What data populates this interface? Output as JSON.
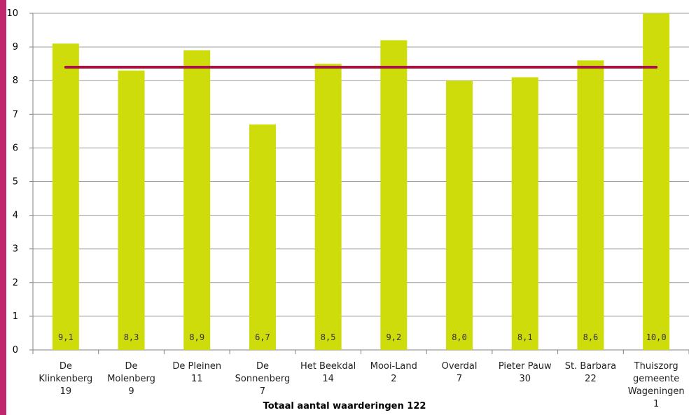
{
  "colors": {
    "bar": "#cddc0a",
    "average_line": "#a5133f",
    "accent_left_bar": "#c0266e",
    "grid": "#9a9a9a"
  },
  "footer": {
    "note": "Totaal aantal waarderingen 122"
  },
  "chart_data": {
    "type": "bar",
    "title": "",
    "xlabel": "",
    "ylabel": "",
    "ylim": [
      0,
      10
    ],
    "yticks": [
      "0",
      "1",
      "2",
      "3",
      "4",
      "5",
      "6",
      "7",
      "8",
      "9",
      "10"
    ],
    "grid": true,
    "categories": [
      [
        "De",
        "Klinkenberg",
        "19"
      ],
      [
        "De",
        "Molenberg",
        "9"
      ],
      [
        "De Pleinen",
        "11"
      ],
      [
        "De",
        "Sonnenberg",
        "7"
      ],
      [
        "Het Beekdal",
        "14"
      ],
      [
        "Mooi-Land",
        "2"
      ],
      [
        "Overdal",
        "7"
      ],
      [
        "Pieter Pauw",
        "30"
      ],
      [
        "St. Barbara",
        "22"
      ],
      [
        "Thuiszorg",
        "gemeente",
        "Wageningen",
        "1"
      ]
    ],
    "values": [
      9.1,
      8.3,
      8.9,
      6.7,
      8.5,
      9.2,
      8.0,
      8.1,
      8.6,
      10.0
    ],
    "value_labels": [
      "9,1",
      "8,3",
      "8,9",
      "6,7",
      "8,5",
      "9,2",
      "8,0",
      "8,1",
      "8,6",
      "10,0"
    ],
    "average_line": 8.4
  }
}
